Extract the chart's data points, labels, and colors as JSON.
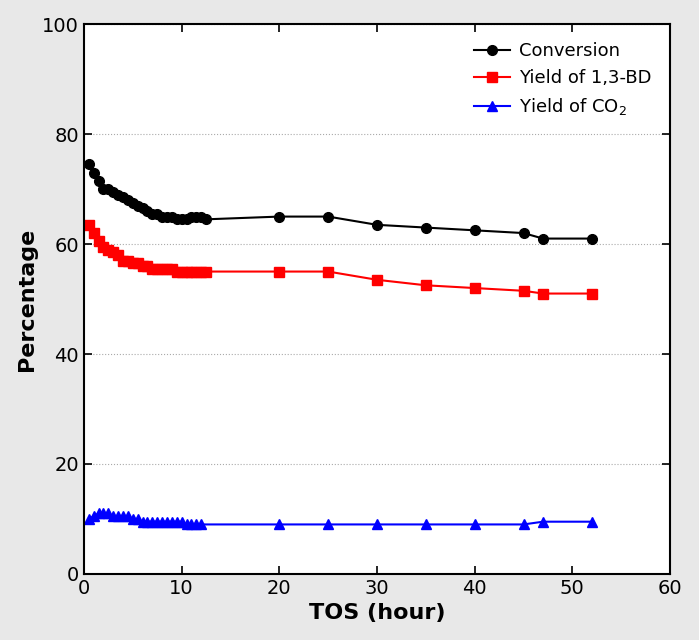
{
  "conversion_x": [
    0.5,
    1,
    1.5,
    2,
    2.5,
    3,
    3.5,
    4,
    4.5,
    5,
    5.5,
    6,
    6.5,
    7,
    7.5,
    8,
    8.5,
    9,
    9.5,
    10,
    10.5,
    11,
    11.5,
    12,
    12.5,
    20,
    25,
    30,
    35,
    40,
    45,
    47,
    52
  ],
  "conversion_y": [
    74.5,
    73,
    71.5,
    70,
    70,
    69.5,
    69,
    68.5,
    68,
    67.5,
    67,
    66.5,
    66,
    65.5,
    65.5,
    65,
    65,
    65,
    64.5,
    64.5,
    64.5,
    65,
    65,
    65,
    64.5,
    65,
    65,
    63.5,
    63,
    62.5,
    62,
    61,
    61
  ],
  "bd_x": [
    0.5,
    1,
    1.5,
    2,
    2.5,
    3,
    3.5,
    4,
    4.5,
    5,
    5.5,
    6,
    6.5,
    7,
    7.5,
    8,
    8.5,
    9,
    9.5,
    10,
    10.5,
    11,
    11.5,
    12,
    12.5,
    20,
    25,
    30,
    35,
    40,
    45,
    47,
    52
  ],
  "bd_y": [
    63.5,
    62,
    60.5,
    59.5,
    59,
    58.5,
    58,
    57,
    57,
    56.5,
    56.5,
    56,
    56,
    55.5,
    55.5,
    55.5,
    55.5,
    55.5,
    55,
    55,
    55,
    55,
    55,
    55,
    55,
    55,
    55,
    53.5,
    52.5,
    52,
    51.5,
    51,
    51
  ],
  "co2_x": [
    0.5,
    1,
    1.5,
    2,
    2.5,
    3,
    3.5,
    4,
    4.5,
    5,
    5.5,
    6,
    6.5,
    7,
    7.5,
    8,
    8.5,
    9,
    9.5,
    10,
    10.5,
    11,
    11.5,
    12,
    20,
    25,
    30,
    35,
    40,
    45,
    47,
    52
  ],
  "co2_y": [
    10,
    10.5,
    11,
    11,
    11,
    10.5,
    10.5,
    10.5,
    10.5,
    10,
    10,
    9.5,
    9.5,
    9.5,
    9.5,
    9.5,
    9.5,
    9.5,
    9.5,
    9.5,
    9,
    9,
    9,
    9,
    9,
    9,
    9,
    9,
    9,
    9,
    9.5,
    9.5
  ],
  "xlabel": "TOS (hour)",
  "ylabel": "Percentage",
  "xlim": [
    0,
    60
  ],
  "ylim": [
    0,
    100
  ],
  "xticks": [
    0,
    10,
    20,
    30,
    40,
    50,
    60
  ],
  "yticks": [
    0,
    20,
    40,
    60,
    80,
    100
  ],
  "legend_labels": [
    "Conversion",
    "Yield of 1,3-BD",
    "Yield of CO$_2$"
  ],
  "colors": [
    "black",
    "red",
    "blue"
  ],
  "markers": [
    "o",
    "s",
    "^"
  ],
  "markersize": 7,
  "linewidth": 1.5,
  "grid_color": "#aaaaaa",
  "grid_linestyle": "dotted",
  "bg_color": "white",
  "fig_bg_color": "#e8e8e8"
}
